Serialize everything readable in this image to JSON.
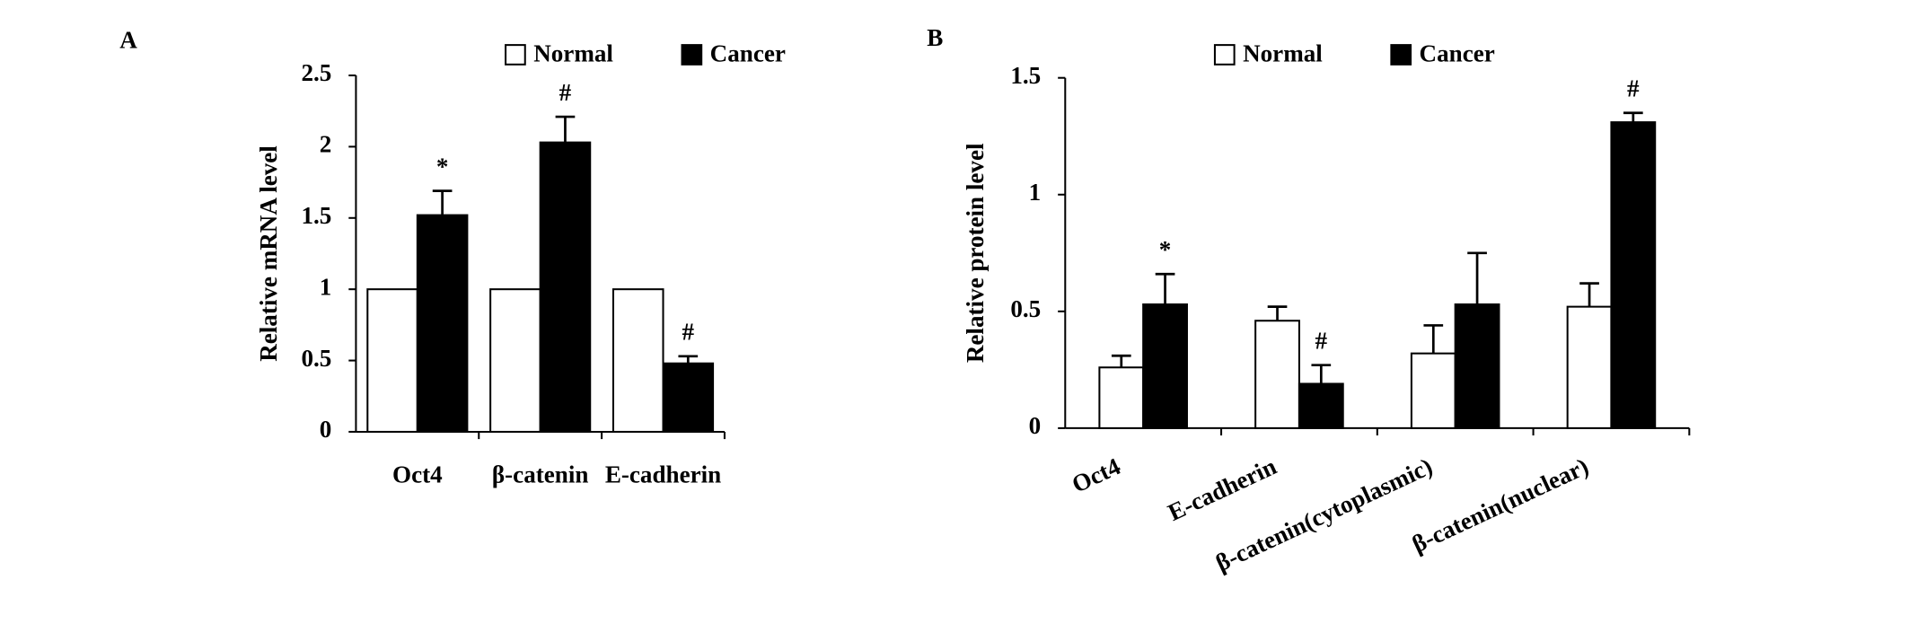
{
  "chart_data": [
    {
      "type": "bar",
      "panel_label": "A",
      "ylabel": "Relative mRNA level",
      "categories": [
        "Oct4",
        "β-catenin",
        "E-cadherin"
      ],
      "series": [
        {
          "name": "Normal",
          "color": "#ffffff",
          "values": [
            1,
            1,
            1
          ]
        },
        {
          "name": "Cancer",
          "color": "#000000",
          "values": [
            1.52,
            2.03,
            0.48
          ],
          "errors": [
            0.17,
            0.18,
            0.05
          ],
          "annotations": [
            "*",
            "#",
            "#"
          ]
        }
      ],
      "ylim": [
        0,
        2.5
      ],
      "yticks": [
        0,
        0.5,
        1,
        1.5,
        2,
        2.5
      ],
      "xtick_rotation": 0
    },
    {
      "type": "bar",
      "panel_label": "B",
      "ylabel": "Relative protein level",
      "categories": [
        "Oct4",
        "E-cadherin",
        "β-catenin(cytoplasmic)",
        "β-catenin(nuclear)"
      ],
      "series": [
        {
          "name": "Normal",
          "color": "#ffffff",
          "values": [
            0.26,
            0.46,
            0.32,
            0.52
          ],
          "errors": [
            0.05,
            0.06,
            0.12,
            0.1
          ]
        },
        {
          "name": "Cancer",
          "color": "#000000",
          "values": [
            0.53,
            0.19,
            0.53,
            1.31
          ],
          "errors": [
            0.13,
            0.08,
            0.22,
            0.04
          ],
          "annotations": [
            "*",
            "#",
            null,
            "#"
          ]
        }
      ],
      "ylim": [
        0,
        1.5
      ],
      "yticks": [
        0,
        0.5,
        1,
        1.5
      ],
      "xtick_rotation": -25
    }
  ]
}
